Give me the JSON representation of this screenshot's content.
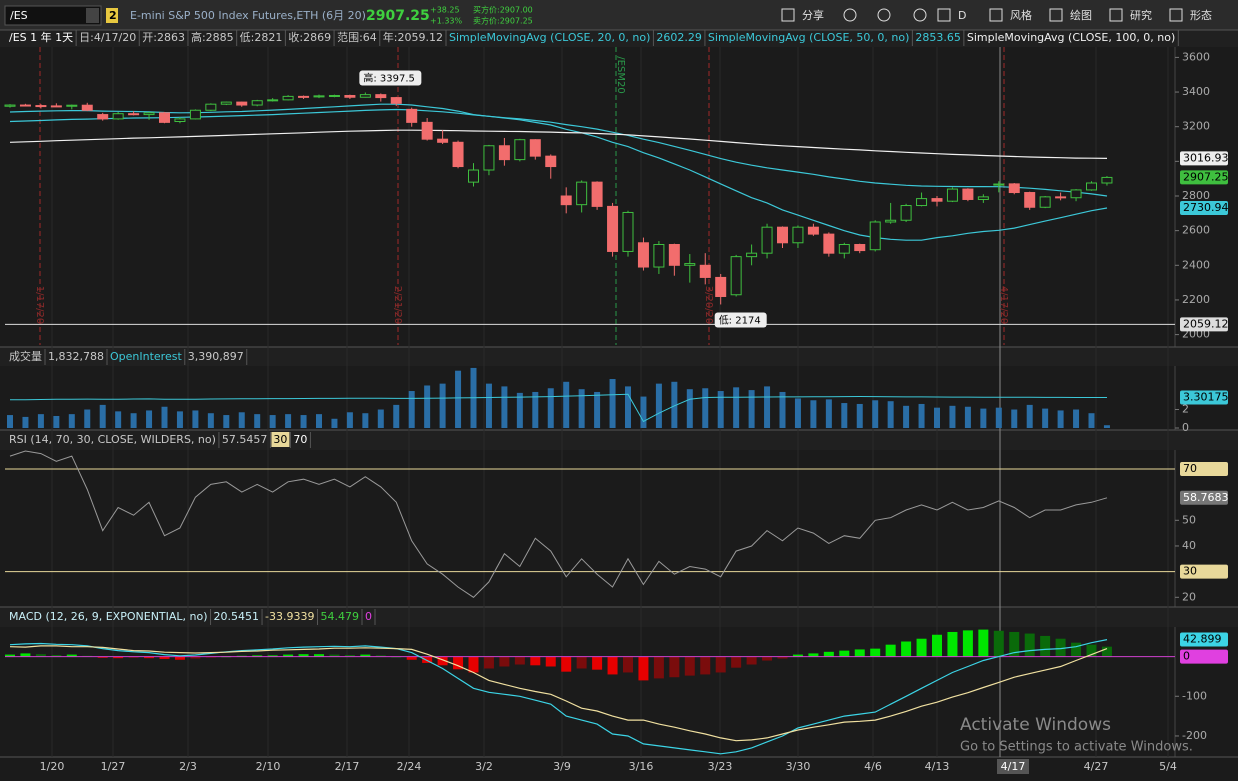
{
  "toolbar": {
    "symbol": "/ES",
    "badge": "2",
    "description": "E-mini S&P 500 Index Futures,ETH (6月 20)",
    "last": "2907.25",
    "change": "+38.25",
    "change_pct": "+1.33%",
    "bid": "买方价:2907.00",
    "ask": "卖方价:2907.25",
    "buttons": [
      "分享",
      "D",
      "风格",
      "绘图",
      "研究",
      "形态"
    ]
  },
  "chart_data": [
    {
      "type": "candlestick",
      "header": [
        "/ES 1 年 1天",
        "日:4/17/20",
        "开:2863",
        "高:2885",
        "低:2821",
        "收:2869",
        "范围:64",
        "年:2059.12"
      ],
      "up_color": "#3fbf3f",
      "down_color": "#f26d6d",
      "ylim": [
        1940,
        3660
      ],
      "yticks": [
        2000,
        2200,
        2400,
        2600,
        2800,
        3000,
        3200,
        3400,
        3600
      ],
      "high_label": "高: 3397.5",
      "low_label": "低: 2174",
      "reference_line": 2059.12,
      "events": [
        "1/17/20",
        "2/21/20",
        "3/20/20",
        "4/17/20"
      ],
      "contract_event": "/ESM20",
      "candles": [
        [
          3318,
          3330,
          3310,
          3325
        ],
        [
          3325,
          3332,
          3318,
          3322
        ],
        [
          3322,
          3330,
          3305,
          3320
        ],
        [
          3320,
          3335,
          3315,
          3318
        ],
        [
          3318,
          3328,
          3300,
          3324
        ],
        [
          3324,
          3338,
          3290,
          3295
        ],
        [
          3270,
          3280,
          3235,
          3245
        ],
        [
          3245,
          3285,
          3240,
          3275
        ],
        [
          3275,
          3290,
          3265,
          3270
        ],
        [
          3270,
          3285,
          3240,
          3280
        ],
        [
          3280,
          3285,
          3220,
          3225
        ],
        [
          3230,
          3255,
          3220,
          3245
        ],
        [
          3245,
          3300,
          3242,
          3295
        ],
        [
          3295,
          3335,
          3290,
          3330
        ],
        [
          3330,
          3345,
          3325,
          3342
        ],
        [
          3342,
          3345,
          3315,
          3325
        ],
        [
          3325,
          3355,
          3318,
          3350
        ],
        [
          3350,
          3365,
          3345,
          3355
        ],
        [
          3355,
          3382,
          3352,
          3375
        ],
        [
          3375,
          3380,
          3360,
          3372
        ],
        [
          3372,
          3385,
          3365,
          3378
        ],
        [
          3378,
          3385,
          3370,
          3380
        ],
        [
          3380,
          3385,
          3360,
          3370
        ],
        [
          3370,
          3397.5,
          3368,
          3385
        ],
        [
          3385,
          3392,
          3345,
          3368
        ],
        [
          3368,
          3372,
          3320,
          3335
        ],
        [
          3300,
          3310,
          3200,
          3225
        ],
        [
          3225,
          3250,
          3120,
          3128
        ],
        [
          3128,
          3180,
          3100,
          3110
        ],
        [
          3110,
          3120,
          2960,
          2970
        ],
        [
          2880,
          2990,
          2855,
          2950
        ],
        [
          2950,
          3095,
          2920,
          3090
        ],
        [
          3090,
          3135,
          2975,
          3010
        ],
        [
          3010,
          3130,
          3000,
          3125
        ],
        [
          3125,
          3128,
          3010,
          3030
        ],
        [
          3030,
          3040,
          2900,
          2970
        ],
        [
          2800,
          2850,
          2700,
          2750
        ],
        [
          2750,
          2890,
          2705,
          2880
        ],
        [
          2880,
          2885,
          2720,
          2740
        ],
        [
          2740,
          2760,
          2450,
          2480
        ],
        [
          2480,
          2715,
          2450,
          2705
        ],
        [
          2530,
          2560,
          2370,
          2390
        ],
        [
          2390,
          2540,
          2350,
          2520
        ],
        [
          2520,
          2525,
          2340,
          2400
        ],
        [
          2400,
          2465,
          2300,
          2410
        ],
        [
          2400,
          2470,
          2290,
          2330
        ],
        [
          2330,
          2350,
          2174,
          2220
        ],
        [
          2230,
          2460,
          2220,
          2450
        ],
        [
          2450,
          2520,
          2400,
          2470
        ],
        [
          2470,
          2640,
          2440,
          2620
        ],
        [
          2620,
          2625,
          2500,
          2530
        ],
        [
          2530,
          2630,
          2500,
          2620
        ],
        [
          2620,
          2640,
          2570,
          2580
        ],
        [
          2580,
          2590,
          2450,
          2470
        ],
        [
          2470,
          2530,
          2440,
          2520
        ],
        [
          2520,
          2525,
          2470,
          2485
        ],
        [
          2490,
          2660,
          2480,
          2650
        ],
        [
          2650,
          2760,
          2640,
          2660
        ],
        [
          2660,
          2755,
          2650,
          2745
        ],
        [
          2745,
          2820,
          2740,
          2785
        ],
        [
          2785,
          2800,
          2740,
          2770
        ],
        [
          2770,
          2850,
          2765,
          2840
        ],
        [
          2840,
          2845,
          2770,
          2780
        ],
        [
          2780,
          2810,
          2760,
          2795
        ],
        [
          2863,
          2885,
          2821,
          2869
        ],
        [
          2870,
          2875,
          2810,
          2820
        ],
        [
          2820,
          2825,
          2720,
          2735
        ],
        [
          2735,
          2800,
          2730,
          2795
        ],
        [
          2795,
          2820,
          2775,
          2790
        ],
        [
          2790,
          2840,
          2770,
          2835
        ],
        [
          2835,
          2885,
          2830,
          2875
        ],
        [
          2875,
          2915,
          2860,
          2907.25
        ]
      ],
      "series": [
        {
          "name": "SimpleMovingAvg (CLOSE, 20, 0, no)",
          "color": "#3cc8d8",
          "values": [
            3285,
            3288,
            3290,
            3292,
            3293,
            3293,
            3290,
            3289,
            3288,
            3286,
            3282,
            3280,
            3281,
            3283,
            3286,
            3288,
            3292,
            3296,
            3300,
            3305,
            3310,
            3315,
            3320,
            3325,
            3330,
            3330,
            3325,
            3315,
            3305,
            3290,
            3270,
            3260,
            3250,
            3240,
            3225,
            3210,
            3185,
            3165,
            3140,
            3110,
            3085,
            3050,
            3020,
            2985,
            2950,
            2910,
            2870,
            2830,
            2790,
            2760,
            2720,
            2690,
            2660,
            2630,
            2600,
            2575,
            2560,
            2550,
            2545,
            2545,
            2560,
            2570,
            2585,
            2595,
            2602.29,
            2615,
            2635,
            2655,
            2675,
            2695,
            2715,
            2730.94
          ]
        },
        {
          "name": "SimpleMovingAvg (CLOSE, 50, 0, no)",
          "color": "#3cc8d8",
          "values": [
            3230,
            3233,
            3236,
            3239,
            3242,
            3244,
            3246,
            3248,
            3250,
            3251,
            3252,
            3254,
            3256,
            3258,
            3261,
            3264,
            3267,
            3270,
            3274,
            3278,
            3282,
            3286,
            3290,
            3294,
            3297,
            3299,
            3297,
            3292,
            3286,
            3278,
            3268,
            3260,
            3252,
            3245,
            3236,
            3226,
            3212,
            3200,
            3186,
            3168,
            3150,
            3128,
            3108,
            3086,
            3064,
            3040,
            3016,
            2995,
            2978,
            2963,
            2950,
            2938,
            2925,
            2910,
            2898,
            2885,
            2875,
            2868,
            2862,
            2858,
            2856,
            2855,
            2854,
            2854,
            2853.65,
            2850,
            2845,
            2838,
            2830,
            2822,
            2812,
            2800
          ]
        },
        {
          "name": "SimpleMovingAvg (CLOSE, 100, 0, no)",
          "color": "#f0f0f0",
          "values": [
            3110,
            3113,
            3116,
            3119,
            3122,
            3125,
            3128,
            3131,
            3134,
            3136,
            3139,
            3141,
            3144,
            3147,
            3150,
            3153,
            3156,
            3159,
            3162,
            3165,
            3168,
            3171,
            3174,
            3176,
            3178,
            3180,
            3180,
            3179,
            3178,
            3177,
            3175,
            3174,
            3173,
            3172,
            3170,
            3169,
            3166,
            3164,
            3161,
            3157,
            3153,
            3147,
            3141,
            3135,
            3129,
            3122,
            3115,
            3108,
            3101,
            3095,
            3090,
            3085,
            3080,
            3075,
            3070,
            3066,
            3061,
            3057,
            3052,
            3048,
            3044,
            3040,
            3037,
            3034,
            3031,
            3028,
            3025,
            3023,
            3021,
            3019,
            3018,
            3016.93
          ]
        }
      ]
    },
    {
      "type": "bar",
      "ylim": [
        0,
        6.6
      ],
      "yticks": [
        0,
        2
      ],
      "series": [
        {
          "name": "成交量",
          "header_value": "1,832,788",
          "color": "#2a6ea6",
          "values": [
            1.4,
            1.2,
            1.5,
            1.3,
            1.5,
            2.0,
            2.5,
            1.8,
            1.6,
            1.9,
            2.3,
            1.8,
            1.9,
            1.6,
            1.4,
            1.7,
            1.5,
            1.4,
            1.5,
            1.4,
            1.5,
            1.0,
            1.7,
            1.6,
            2.0,
            2.5,
            4.0,
            4.6,
            4.8,
            6.2,
            6.5,
            4.8,
            4.5,
            3.8,
            3.9,
            4.3,
            5.0,
            4.2,
            3.9,
            5.3,
            4.5,
            3.4,
            4.8,
            5.0,
            4.2,
            4.3,
            4.0,
            4.4,
            4.1,
            4.5,
            3.9,
            3.2,
            3.0,
            3.1,
            2.7,
            2.6,
            3.0,
            2.9,
            2.4,
            2.6,
            2.2,
            2.4,
            2.3,
            2.1,
            2.2,
            2.0,
            2.5,
            2.1,
            1.9,
            2.0,
            1.6,
            0.3
          ]
        },
        {
          "name": "OpenInterest",
          "header_value": "3,390,897",
          "color": "#3cc8d8",
          "values": [
            3.05,
            3.06,
            3.08,
            3.1,
            3.12,
            3.13,
            3.1,
            3.12,
            3.14,
            3.15,
            3.12,
            3.1,
            3.12,
            3.14,
            3.15,
            3.16,
            3.17,
            3.18,
            3.18,
            3.19,
            3.2,
            3.2,
            3.21,
            3.22,
            3.22,
            3.2,
            3.2,
            3.22,
            3.24,
            3.26,
            3.28,
            3.3,
            3.32,
            3.34,
            3.36,
            3.4,
            3.45,
            3.5,
            3.55,
            3.6,
            3.65,
            0.7,
            1.6,
            2.4,
            3.1,
            3.3,
            3.32,
            3.33,
            3.34,
            3.35,
            3.36,
            3.37,
            3.38,
            3.39,
            3.4,
            3.41,
            3.4,
            3.38,
            3.36,
            3.36,
            3.35,
            3.34,
            3.34,
            3.33,
            3.33,
            3.32,
            3.32,
            3.31,
            3.31,
            3.3,
            3.3,
            3.30175
          ]
        }
      ]
    },
    {
      "type": "line",
      "title": "RSI (14, 70, 30, CLOSE, WILDERS, no)",
      "color": "#9a9a9a",
      "level_color": "#e8d89a",
      "ylim": [
        17,
        77
      ],
      "yticks": [
        20,
        40,
        50
      ],
      "levels": [
        70,
        30
      ],
      "values": [
        75,
        77,
        76,
        73,
        75,
        62,
        46,
        55,
        52,
        57,
        44,
        47,
        59,
        64,
        65,
        61,
        64,
        61,
        65,
        66,
        64,
        66,
        63,
        67,
        63,
        57,
        42,
        33,
        29,
        24,
        20,
        26,
        37,
        32,
        43,
        38,
        28,
        35,
        29,
        24,
        35,
        25,
        34,
        29,
        32,
        31,
        28,
        38,
        40,
        46,
        42,
        47,
        45,
        41,
        44,
        43,
        50,
        51,
        54,
        56,
        54,
        57,
        54,
        55,
        57.5457,
        55,
        51,
        54,
        54,
        56,
        57,
        58.7683
      ]
    },
    {
      "type": "macd",
      "title": "MACD (12, 26, 9, EXPONENTIAL, no)",
      "header_values": [
        "20.5451",
        "-33.9339",
        "54.479"
      ],
      "ylim": [
        -253,
        72
      ],
      "yticks": [
        -200,
        -100
      ],
      "zero_line": 0,
      "histogram": [
        5,
        8,
        6,
        4,
        5,
        2,
        -3,
        -4,
        -3,
        -4,
        -6,
        -8,
        -5,
        -2,
        1,
        2,
        3,
        3,
        5,
        6,
        6,
        5,
        4,
        5,
        3,
        0,
        -8,
        -16,
        -22,
        -32,
        -40,
        -30,
        -25,
        -20,
        -22,
        -25,
        -38,
        -30,
        -33,
        -45,
        -40,
        -60,
        -55,
        -52,
        -48,
        -45,
        -40,
        -28,
        -20,
        -10,
        -5,
        5,
        8,
        12,
        15,
        18,
        20,
        30,
        38,
        45,
        55,
        62,
        66,
        68,
        65,
        62,
        58,
        52,
        45,
        35,
        30,
        25
      ],
      "series": [
        {
          "color": "#3cd4e6",
          "values": [
            30,
            32,
            33,
            31,
            30,
            27,
            20,
            15,
            12,
            10,
            5,
            2,
            4,
            8,
            12,
            15,
            17,
            19,
            22,
            24,
            25,
            26,
            25,
            27,
            24,
            20,
            10,
            -10,
            -30,
            -55,
            -80,
            -90,
            -95,
            -100,
            -110,
            -120,
            -150,
            -160,
            -170,
            -195,
            -200,
            -220,
            -225,
            -230,
            -235,
            -240,
            -245,
            -240,
            -230,
            -215,
            -200,
            -180,
            -170,
            -160,
            -150,
            -145,
            -140,
            -120,
            -100,
            -80,
            -60,
            -40,
            -25,
            -10,
            0,
            10,
            15,
            18,
            20,
            25,
            35,
            42.899
          ]
        },
        {
          "color": "#f0e0a0",
          "values": [
            25,
            24,
            27,
            27,
            25,
            25,
            23,
            19,
            15,
            14,
            11,
            10,
            9,
            10,
            11,
            13,
            14,
            16,
            17,
            18,
            19,
            21,
            21,
            22,
            21,
            20,
            18,
            6,
            -8,
            -23,
            -40,
            -60,
            -70,
            -80,
            -88,
            -95,
            -112,
            -130,
            -137,
            -150,
            -160,
            -160,
            -170,
            -178,
            -187,
            -195,
            -205,
            -212,
            -210,
            -205,
            -195,
            -185,
            -178,
            -172,
            -165,
            -163,
            -160,
            -150,
            -138,
            -125,
            -115,
            -102,
            -91,
            -78,
            -65,
            -52,
            -43,
            -34,
            -25,
            -10,
            5,
            20
          ]
        }
      ]
    }
  ],
  "x_labels": [
    "1/20",
    "1/27",
    "2/3",
    "2/10",
    "2/17",
    "2/24",
    "3/2",
    "3/9",
    "3/16",
    "3/23",
    "3/30",
    "4/6",
    "4/13",
    "4/27",
    "5/4"
  ],
  "cursor_date": "4/17",
  "watermark": {
    "title": "Activate Windows",
    "subtitle": "Go to Settings to activate Windows."
  }
}
